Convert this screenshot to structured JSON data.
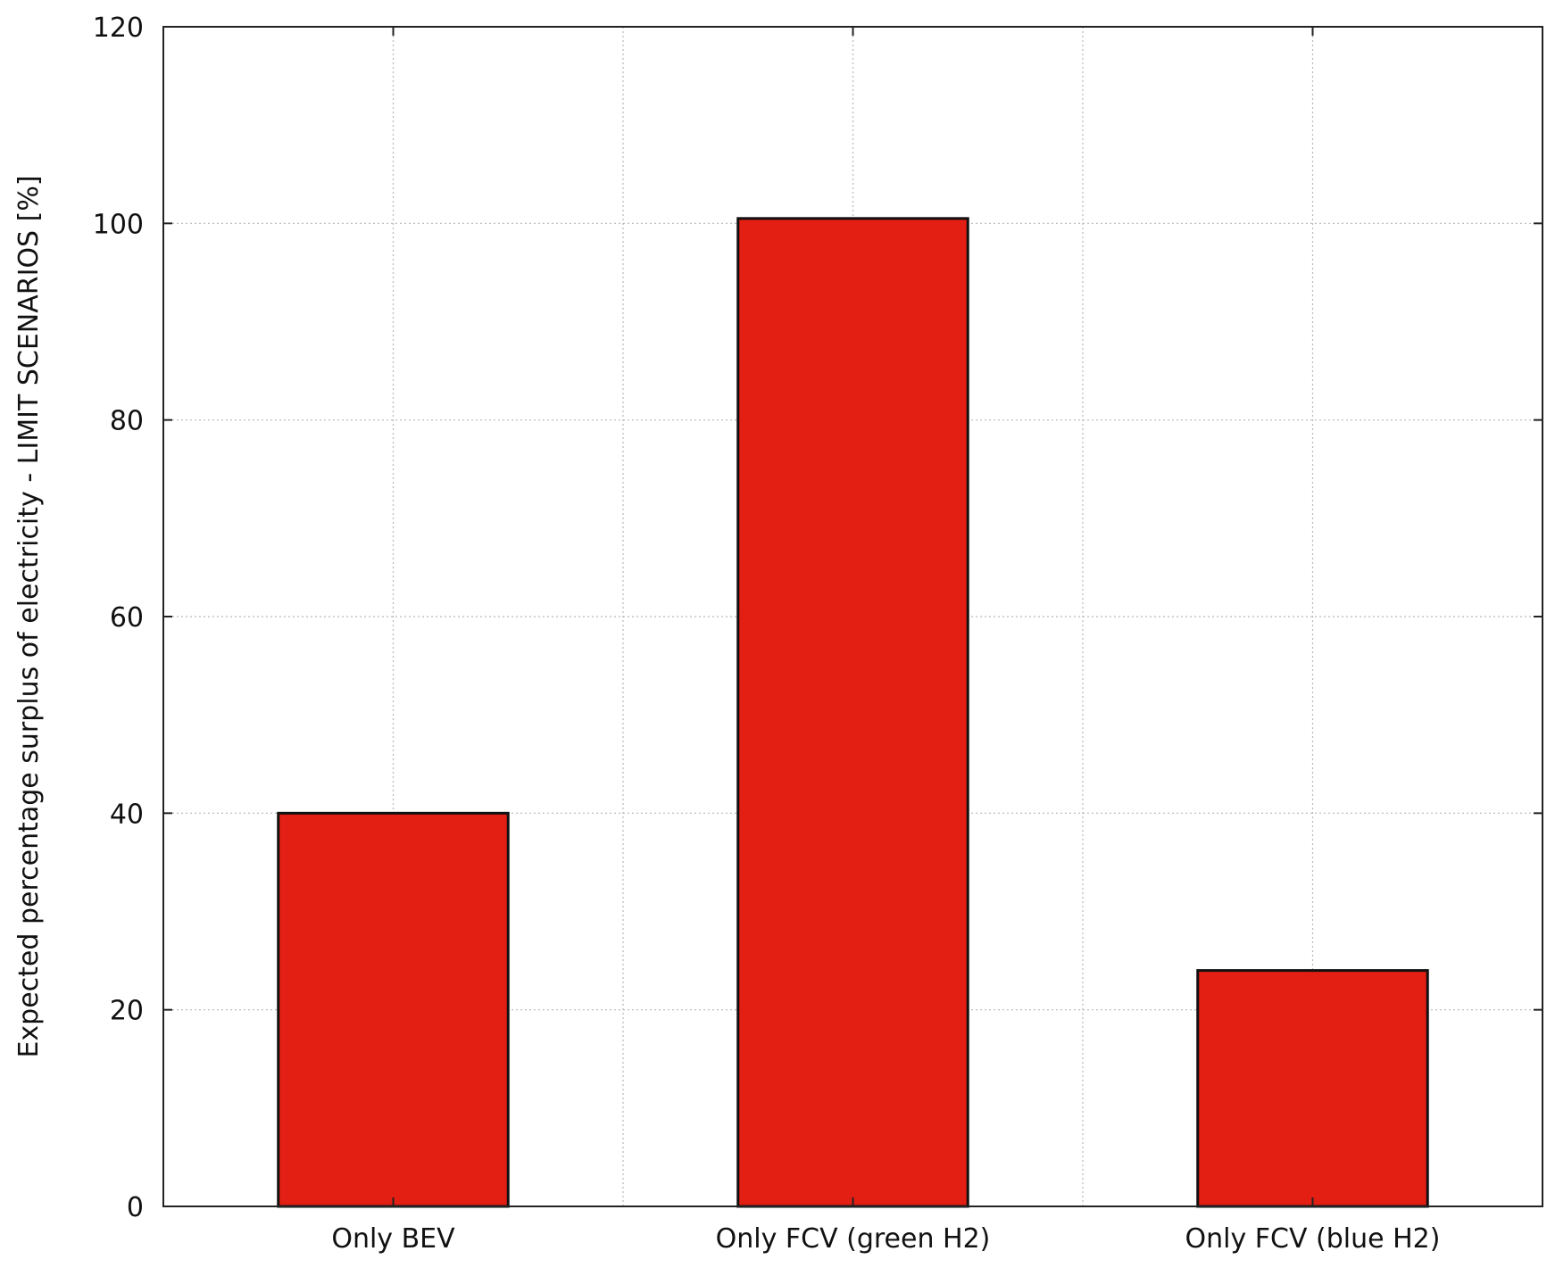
{
  "chart_data": {
    "type": "bar",
    "title": "",
    "xlabel": "",
    "ylabel": "Expected percentage surplus of electricity - LIMIT SCENARIOS [%]",
    "categories": [
      "Only BEV",
      "Only FCV (green H2)",
      "Only FCV (blue H2)"
    ],
    "values": [
      40,
      100.5,
      24
    ],
    "ylim": [
      0,
      120
    ],
    "yticks": [
      0,
      20,
      40,
      60,
      80,
      100,
      120
    ],
    "grid": true,
    "bar_color": "#e31e12",
    "edge_color": "#111111"
  }
}
